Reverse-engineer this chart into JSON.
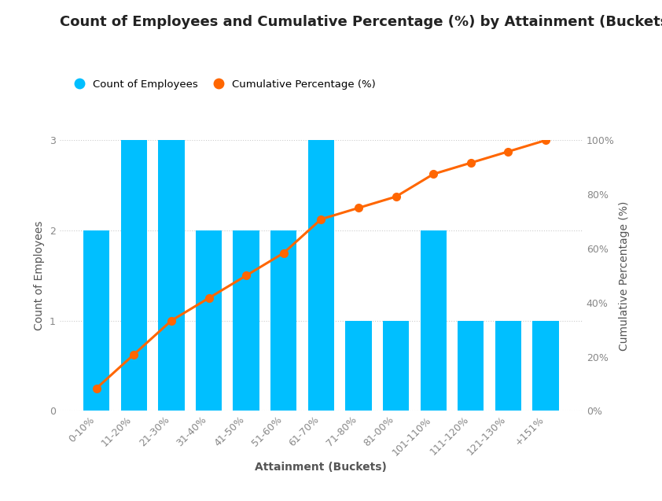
{
  "title": "Count of Employees and Cumulative Percentage (%) by Attainment (Buckets)",
  "categories": [
    "0-10%",
    "11-20%",
    "21-30%",
    "31-40%",
    "41-50%",
    "51-60%",
    "61-70%",
    "71-80%",
    "81-00%",
    "101-110%",
    "111-120%",
    "121-130%",
    "+151%"
  ],
  "counts": [
    2,
    3,
    3,
    2,
    2,
    2,
    3,
    1,
    1,
    2,
    1,
    1,
    1
  ],
  "cumulative_pct": [
    8.333,
    20.833,
    33.333,
    41.667,
    50.0,
    58.333,
    70.833,
    75.0,
    79.167,
    87.5,
    91.667,
    95.833,
    100.0
  ],
  "bar_color": "#00BFFF",
  "line_color": "#FF6600",
  "marker_color": "#FF6600",
  "xlabel": "Attainment (Buckets)",
  "ylabel_left": "Count of Employees",
  "ylabel_right": "Cumulative Percentage (%)",
  "legend_bar": "Count of Employees",
  "legend_line": "Cumulative Percentage (%)",
  "ylim_left": [
    0,
    3
  ],
  "ylim_right": [
    0,
    100
  ],
  "yticks_left": [
    0,
    1,
    2,
    3
  ],
  "yticks_right": [
    0,
    20,
    40,
    60,
    80,
    100
  ],
  "grid_color": "#CCCCCC",
  "background_color": "#FFFFFF",
  "title_fontsize": 13,
  "axis_label_fontsize": 10,
  "tick_fontsize": 9,
  "legend_fontsize": 9.5,
  "tick_color": "#888888",
  "label_color": "#555555",
  "title_color": "#222222"
}
